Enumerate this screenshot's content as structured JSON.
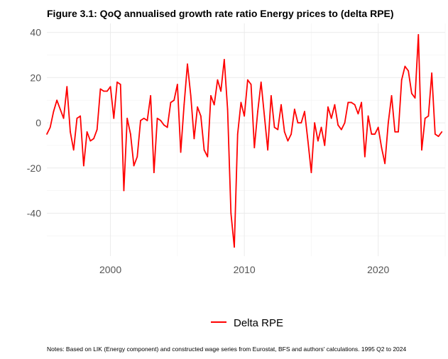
{
  "chart_data": {
    "type": "line",
    "title": "Figure 3.1: QoQ annualised growth rate ratio Energy prices to (delta RPE)",
    "xlabel": "",
    "ylabel": "",
    "notes": "Notes: Based on LIK (Energy component) and constructed wage series from Eurostat, BFS and authors' calculations. 1995 Q2 to 2024",
    "xlim": [
      1995.25,
      2025.0
    ],
    "ylim": [
      -59,
      44
    ],
    "x_ticks": [
      2000,
      2010,
      2020
    ],
    "x_tick_labels": [
      "2000",
      "2010",
      "2020"
    ],
    "y_ticks": [
      40,
      20,
      0,
      -20,
      -40
    ],
    "y_tick_labels": [
      "40",
      "20",
      "0",
      "-20",
      "-40"
    ],
    "grid": true,
    "legend": "bottom",
    "series": [
      {
        "name": "Delta RPE",
        "color": "#ff0000",
        "x_start": 1995.25,
        "x_step": 0.25,
        "values": [
          -5,
          -2,
          5,
          10,
          6,
          2,
          16,
          -4,
          -12,
          2,
          3,
          -19,
          -4,
          -8,
          -7,
          -3,
          15,
          14,
          14,
          16,
          2,
          18,
          17,
          -30,
          2,
          -5,
          -19,
          -15,
          1,
          2,
          1,
          12,
          -22,
          2,
          1,
          -1,
          -2,
          9,
          10,
          17,
          -13,
          8,
          26,
          12,
          -7,
          7,
          3,
          -12,
          -15,
          12,
          8,
          19,
          14,
          28,
          6,
          -40,
          -55,
          -5,
          9,
          3,
          19,
          17,
          -11,
          5,
          18,
          3,
          -12,
          12,
          -2,
          -3,
          8,
          -4,
          -8,
          -5,
          6,
          0,
          0,
          5,
          -8,
          -22,
          0,
          -8,
          -2,
          -10,
          7,
          2,
          8,
          -1,
          -3,
          0,
          9,
          9,
          8,
          4,
          9,
          -15,
          3,
          -5,
          -5,
          -2,
          -11,
          -18,
          0,
          12,
          -4,
          -4,
          19,
          25,
          23,
          13,
          11,
          39,
          -12,
          2,
          3,
          22,
          -5,
          -6,
          -4
        ]
      }
    ]
  }
}
